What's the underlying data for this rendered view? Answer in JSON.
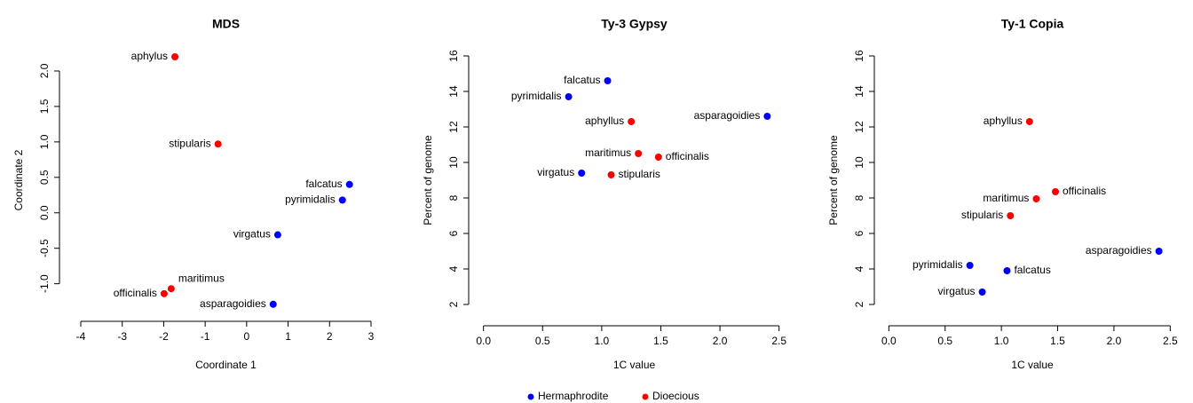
{
  "chart_data": [
    {
      "type": "scatter",
      "title": "MDS",
      "x_label": "Coordinate 1",
      "y_label": "Coordinate 2",
      "labels": [
        "aphylus",
        "stipularis",
        "falcatus",
        "pyrimidalis",
        "virgatus",
        "maritimus",
        "officinalis",
        "asparagoidies"
      ],
      "x": [
        -1.73,
        -0.69,
        2.48,
        2.31,
        0.75,
        -1.82,
        -1.99,
        0.64
      ],
      "values": [
        2.2,
        0.97,
        0.4,
        0.18,
        -0.31,
        -1.07,
        -1.14,
        -1.29
      ],
      "colors": [
        "#ff0000",
        "#ff0000",
        "#0000ff",
        "#0000ff",
        "#0000ff",
        "#ff0000",
        "#ff0000",
        "#0000ff"
      ],
      "xlim": [
        -4.3,
        3.3
      ],
      "ylim": [
        -1.38,
        2.3
      ],
      "xticks": [
        -4,
        -3,
        -2,
        -1,
        0,
        1,
        2,
        3
      ],
      "yticks": [
        {
          "value": -1,
          "label": "-1.0"
        },
        -0.5,
        {
          "value": 0,
          "label": "0.0"
        },
        0.5,
        {
          "value": 1,
          "label": "1.0"
        },
        1.5,
        {
          "value": 2,
          "label": "2.0"
        }
      ]
    },
    {
      "type": "scatter",
      "title": "Ty-3 Gypsy",
      "x_label": "1C value",
      "y_label": "Percent of genome",
      "labels": [
        "falcatus",
        "pyrimidalis",
        "asparagoidies",
        "aphyllus",
        "maritimus",
        "officinalis",
        "virgatus",
        "stipularis"
      ],
      "x": [
        1.05,
        0.72,
        2.4,
        1.25,
        1.31,
        1.48,
        0.83,
        1.08
      ],
      "values": [
        14.6,
        13.7,
        12.6,
        12.3,
        10.5,
        10.3,
        9.4,
        9.3
      ],
      "colors": [
        "#0000ff",
        "#0000ff",
        "#0000ff",
        "#ff0000",
        "#ff0000",
        "#ff0000",
        "#0000ff",
        "#ff0000"
      ],
      "xlim": [
        -0.05,
        2.6
      ],
      "ylim": [
        1.4,
        16.6
      ],
      "xticks": [
        {
          "value": 0,
          "label": "0.0"
        },
        0.5,
        {
          "value": 1,
          "label": "1.0"
        },
        1.5,
        {
          "value": 2,
          "label": "2.0"
        },
        2.5
      ],
      "yticks": [
        2,
        4,
        6,
        8,
        10,
        12,
        14,
        16
      ]
    },
    {
      "type": "scatter",
      "title": "Ty-1 Copia",
      "x_label": "1C value",
      "y_label": "Percent of genome",
      "labels": [
        "aphyllus",
        "officinalis",
        "maritimus",
        "stipularis",
        "asparagoidies",
        "pyrimidalis",
        "falcatus",
        "virgatus"
      ],
      "x": [
        1.25,
        1.48,
        1.31,
        1.08,
        2.4,
        0.72,
        1.05,
        0.83
      ],
      "values": [
        12.3,
        8.35,
        7.95,
        7.0,
        5.0,
        4.2,
        3.9,
        2.7
      ],
      "colors": [
        "#ff0000",
        "#ff0000",
        "#ff0000",
        "#ff0000",
        "#0000ff",
        "#0000ff",
        "#0000ff",
        "#0000ff"
      ],
      "xlim": [
        -0.05,
        2.6
      ],
      "ylim": [
        1.4,
        16.6
      ],
      "xticks": [
        {
          "value": 0,
          "label": "0.0"
        },
        0.5,
        {
          "value": 1,
          "label": "1.0"
        },
        1.5,
        {
          "value": 2,
          "label": "2.0"
        },
        2.5
      ],
      "yticks": [
        2,
        4,
        6,
        8,
        10,
        12,
        14,
        16
      ]
    }
  ],
  "legend": [
    {
      "name": "Hermaphrodite",
      "color": "#0000ff"
    },
    {
      "name": "Dioecious",
      "color": "#ff0000"
    }
  ]
}
